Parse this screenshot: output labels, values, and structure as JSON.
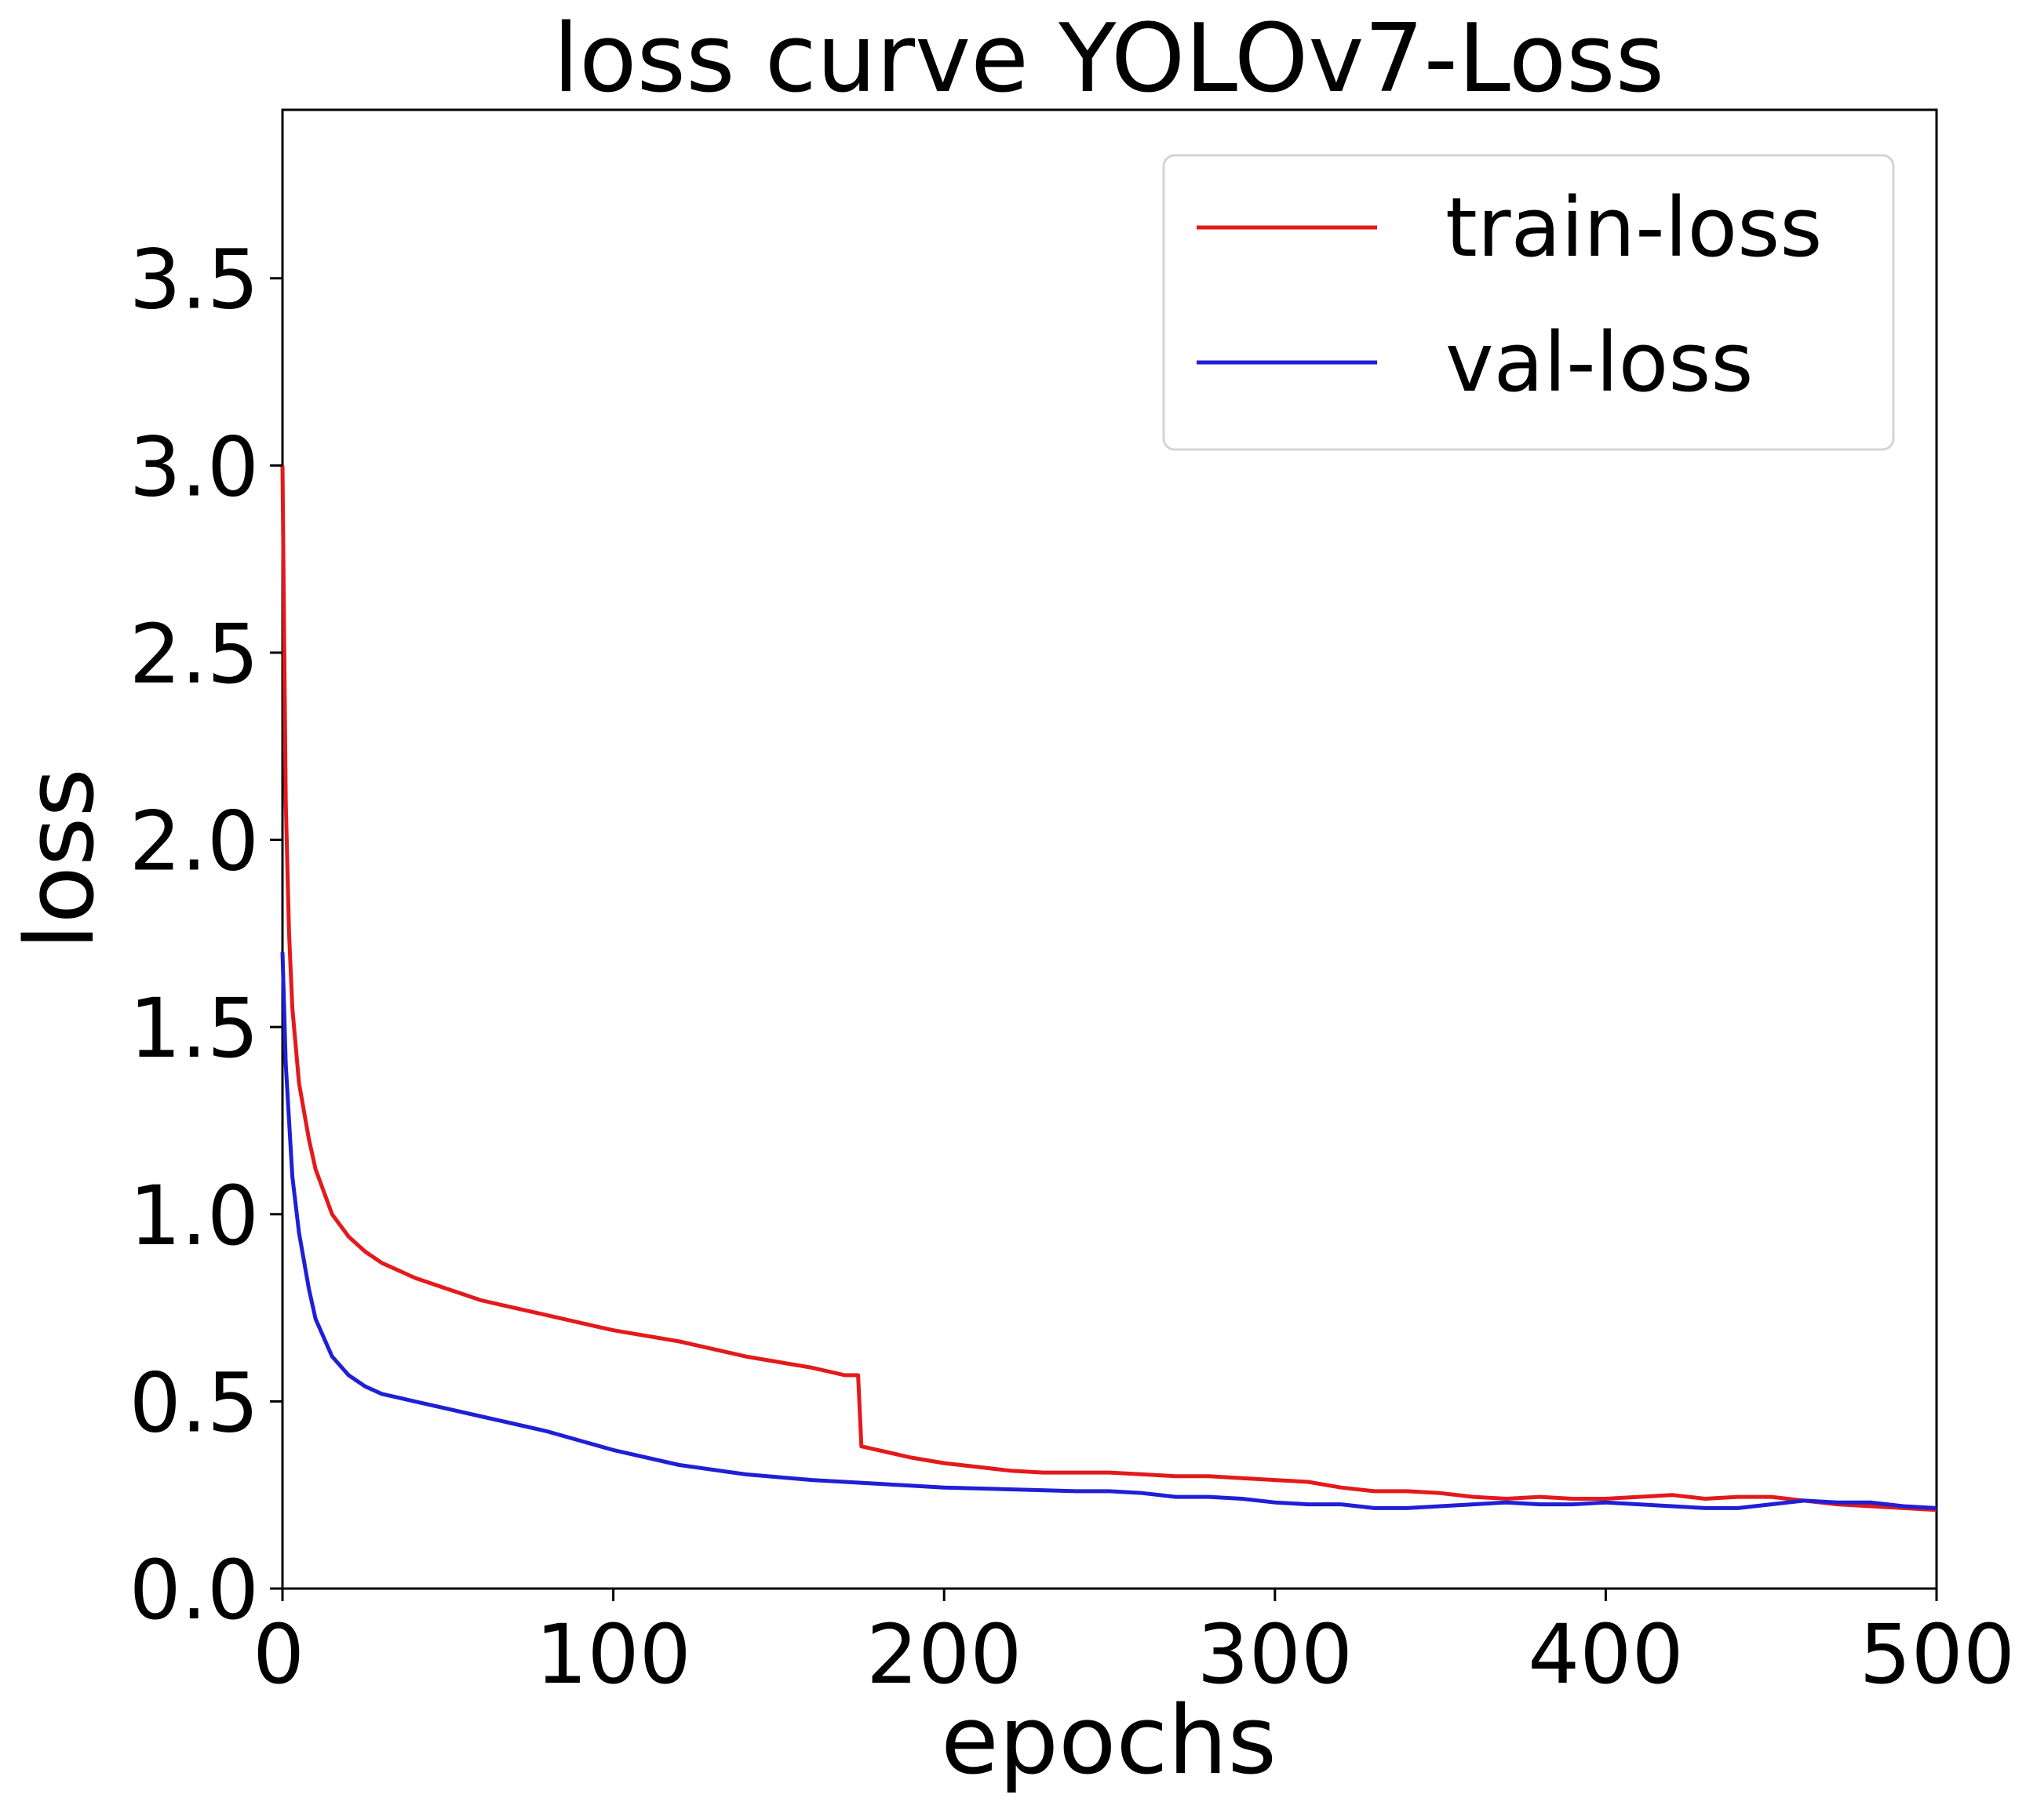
{
  "chart_data": {
    "type": "line",
    "title": "loss curve YOLOv7-Loss",
    "xlabel": "epochs",
    "ylabel": "loss",
    "xlim": [
      0,
      500
    ],
    "ylim": [
      0,
      3.95
    ],
    "xticks": [
      0,
      100,
      200,
      300,
      400,
      500
    ],
    "xtick_labels": [
      "0",
      "100",
      "200",
      "300",
      "400",
      "500"
    ],
    "yticks": [
      0,
      0.5,
      1.0,
      1.5,
      2.0,
      2.5,
      3.0,
      3.5
    ],
    "ytick_labels": [
      "0.0",
      "0.5",
      "1.0",
      "1.5",
      "2.0",
      "2.5",
      "3.0",
      "3.5"
    ],
    "grid": false,
    "legend_position": "top-right",
    "series": [
      {
        "name": "train-loss",
        "color": "#e31a1c",
        "x": [
          0,
          1,
          2,
          3,
          5,
          8,
          10,
          15,
          20,
          25,
          30,
          40,
          50,
          60,
          70,
          80,
          90,
          100,
          120,
          140,
          160,
          170,
          174,
          175,
          180,
          190,
          200,
          210,
          220,
          230,
          240,
          250,
          260,
          270,
          280,
          290,
          300,
          310,
          320,
          330,
          340,
          350,
          360,
          370,
          380,
          390,
          400,
          410,
          420,
          430,
          440,
          450,
          460,
          470,
          480,
          490,
          500
        ],
        "values": [
          3.0,
          2.1,
          1.75,
          1.55,
          1.35,
          1.2,
          1.12,
          1.0,
          0.94,
          0.9,
          0.87,
          0.83,
          0.8,
          0.77,
          0.75,
          0.73,
          0.71,
          0.69,
          0.66,
          0.62,
          0.59,
          0.57,
          0.57,
          0.38,
          0.37,
          0.35,
          0.335,
          0.325,
          0.315,
          0.31,
          0.31,
          0.31,
          0.305,
          0.3,
          0.3,
          0.295,
          0.29,
          0.285,
          0.27,
          0.26,
          0.26,
          0.255,
          0.245,
          0.24,
          0.245,
          0.24,
          0.24,
          0.245,
          0.25,
          0.24,
          0.245,
          0.245,
          0.235,
          0.225,
          0.22,
          0.215,
          0.21
        ]
      },
      {
        "name": "val-loss",
        "color": "#1f1fd6",
        "x": [
          0,
          1,
          2,
          3,
          5,
          8,
          10,
          15,
          20,
          25,
          30,
          40,
          50,
          60,
          70,
          80,
          90,
          100,
          120,
          140,
          160,
          180,
          200,
          220,
          240,
          250,
          260,
          270,
          280,
          290,
          300,
          310,
          320,
          330,
          340,
          350,
          360,
          370,
          380,
          390,
          400,
          410,
          420,
          430,
          440,
          450,
          460,
          470,
          480,
          490,
          500
        ],
        "values": [
          1.7,
          1.4,
          1.25,
          1.1,
          0.95,
          0.8,
          0.72,
          0.62,
          0.57,
          0.54,
          0.52,
          0.5,
          0.48,
          0.46,
          0.44,
          0.42,
          0.395,
          0.37,
          0.33,
          0.305,
          0.29,
          0.28,
          0.27,
          0.265,
          0.26,
          0.26,
          0.255,
          0.245,
          0.245,
          0.24,
          0.23,
          0.225,
          0.225,
          0.215,
          0.215,
          0.22,
          0.225,
          0.23,
          0.225,
          0.225,
          0.23,
          0.225,
          0.22,
          0.215,
          0.215,
          0.225,
          0.235,
          0.23,
          0.23,
          0.22,
          0.215
        ]
      }
    ]
  }
}
